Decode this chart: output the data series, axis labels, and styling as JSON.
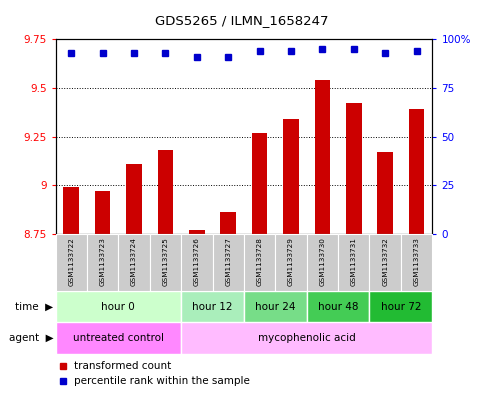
{
  "title": "GDS5265 / ILMN_1658247",
  "samples": [
    "GSM1133722",
    "GSM1133723",
    "GSM1133724",
    "GSM1133725",
    "GSM1133726",
    "GSM1133727",
    "GSM1133728",
    "GSM1133729",
    "GSM1133730",
    "GSM1133731",
    "GSM1133732",
    "GSM1133733"
  ],
  "bar_values": [
    8.99,
    8.97,
    9.11,
    9.18,
    8.77,
    8.86,
    9.27,
    9.34,
    9.54,
    9.42,
    9.17,
    9.39
  ],
  "percentile_values": [
    93,
    93,
    93,
    93,
    91,
    91,
    94,
    94,
    95,
    95,
    93,
    94
  ],
  "bar_color": "#cc0000",
  "dot_color": "#0000cc",
  "ylim_left": [
    8.75,
    9.75
  ],
  "ylim_right": [
    0,
    100
  ],
  "yticks_left": [
    8.75,
    9.0,
    9.25,
    9.5,
    9.75
  ],
  "yticks_right": [
    0,
    25,
    50,
    75,
    100
  ],
  "ytick_labels_left": [
    "8.75",
    "9",
    "9.25",
    "9.5",
    "9.75"
  ],
  "ytick_labels_right": [
    "0",
    "25",
    "50",
    "75",
    "100%"
  ],
  "grid_values": [
    9.0,
    9.25,
    9.5
  ],
  "time_groups": [
    {
      "label": "hour 0",
      "start": 0,
      "end": 4,
      "color": "#ccffcc"
    },
    {
      "label": "hour 12",
      "start": 4,
      "end": 6,
      "color": "#aaeebb"
    },
    {
      "label": "hour 24",
      "start": 6,
      "end": 8,
      "color": "#77dd88"
    },
    {
      "label": "hour 48",
      "start": 8,
      "end": 10,
      "color": "#44cc55"
    },
    {
      "label": "hour 72",
      "start": 10,
      "end": 12,
      "color": "#22bb33"
    }
  ],
  "agent_groups": [
    {
      "label": "untreated control",
      "start": 0,
      "end": 4,
      "color": "#ff88ff"
    },
    {
      "label": "mycophenolic acid",
      "start": 4,
      "end": 12,
      "color": "#ffbbff"
    }
  ],
  "legend_items": [
    {
      "label": "transformed count",
      "color": "#cc0000"
    },
    {
      "label": "percentile rank within the sample",
      "color": "#0000cc"
    }
  ],
  "bg_color_plot": "#ffffff",
  "sample_bg_color": "#cccccc",
  "bar_width": 0.5
}
